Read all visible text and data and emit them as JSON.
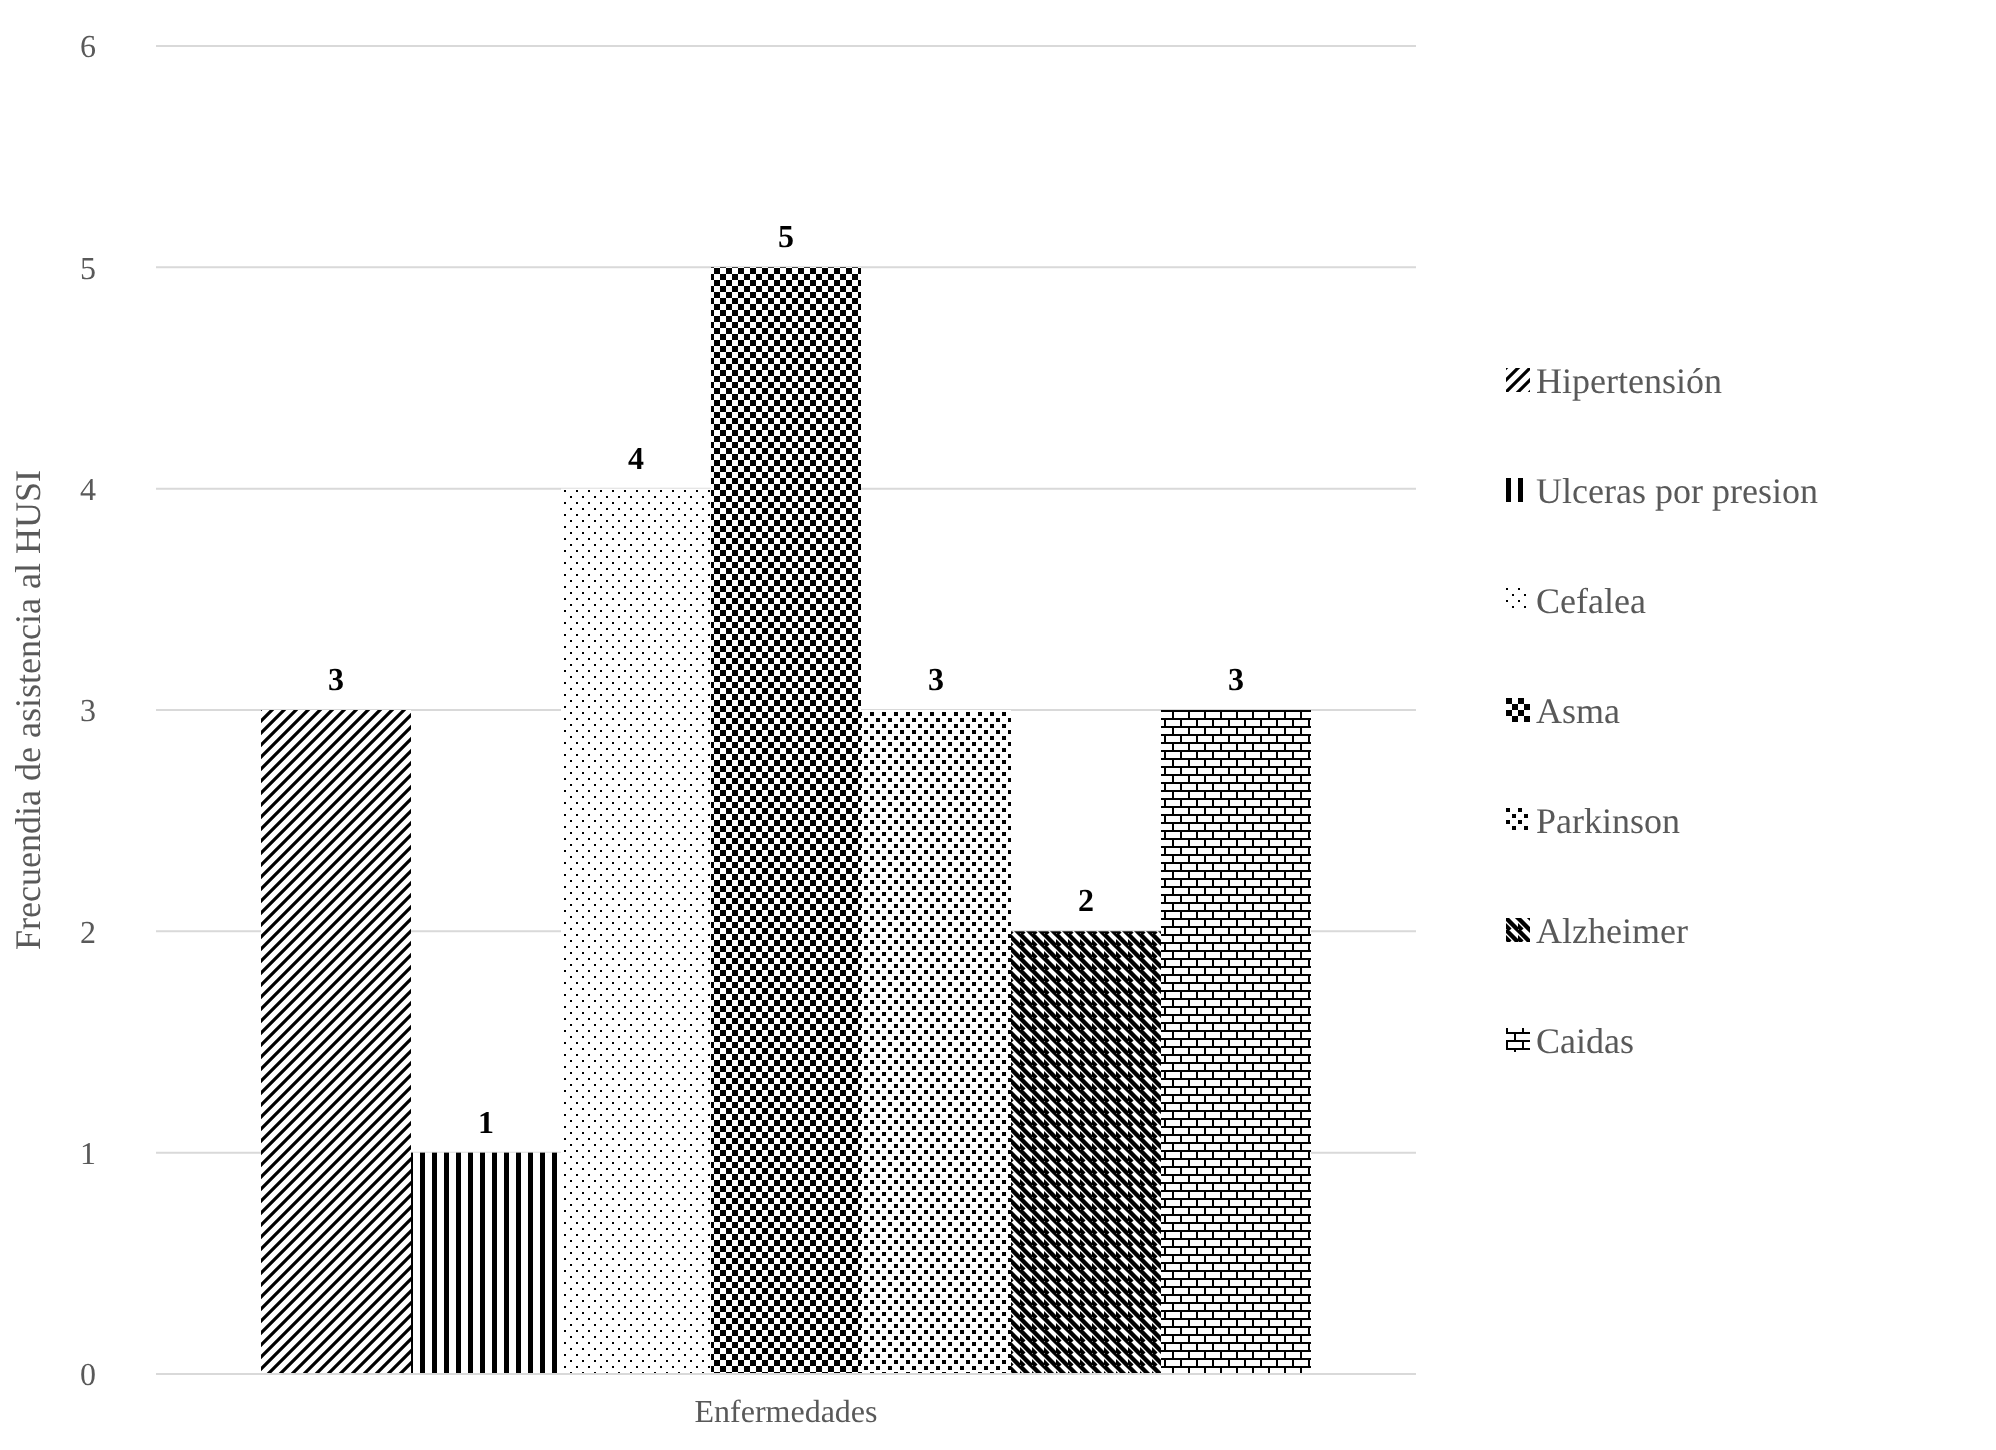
{
  "chart_data": {
    "type": "bar",
    "ylabel": "Frecuendia de asistencia al HUSI",
    "categories": [
      "Enfermedades"
    ],
    "series": [
      {
        "name": "Hipertensión",
        "color": "#000000",
        "values": [
          3
        ]
      },
      {
        "name": "Ulceras por presion",
        "color": "#000000",
        "values": [
          1
        ]
      },
      {
        "name": "Cefalea",
        "color": "#000000",
        "values": [
          4
        ]
      },
      {
        "name": "Asma",
        "color": "#000000",
        "values": [
          5
        ]
      },
      {
        "name": "Parkinson",
        "color": "#000000",
        "values": [
          3
        ]
      },
      {
        "name": "Alzheimer",
        "color": "#000000",
        "values": [
          2
        ]
      },
      {
        "name": "Caidas",
        "color": "#000000",
        "values": [
          3
        ]
      }
    ],
    "ylim": [
      0,
      6
    ],
    "yticks": [
      0,
      1,
      2,
      3,
      4,
      5,
      6
    ],
    "grid": "y",
    "legend": "right",
    "data_labels": true
  }
}
